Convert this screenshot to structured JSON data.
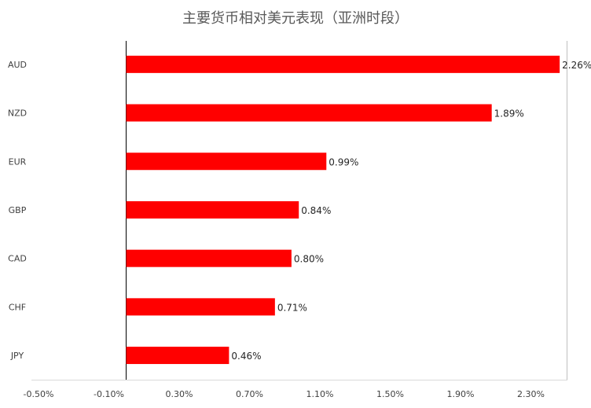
{
  "chart_data": {
    "type": "bar",
    "orientation": "horizontal",
    "title": "主要货币相对美元表现（亚洲时段）",
    "categories": [
      "AUD",
      "NZD",
      "EUR",
      "GBP",
      "CAD",
      "CHF",
      "JPY"
    ],
    "values": [
      2.26,
      1.89,
      0.99,
      0.84,
      0.8,
      0.71,
      0.46
    ],
    "value_labels": [
      "2.26%",
      "1.89%",
      "0.99%",
      "0.84%",
      "0.80%",
      "0.71%",
      "0.46%"
    ],
    "x_ticks": [
      -0.5,
      -0.1,
      0.3,
      0.7,
      1.1,
      1.5,
      1.9,
      2.3
    ],
    "x_tick_labels": [
      "-0.50%",
      "-0.10%",
      "0.30%",
      "0.70%",
      "1.10%",
      "1.50%",
      "1.90%",
      "2.30%"
    ],
    "xlim": [
      -0.5,
      2.3
    ],
    "xlabel": "",
    "ylabel": "",
    "grid": false,
    "legend": "none",
    "bar_color": "#ff0000"
  }
}
